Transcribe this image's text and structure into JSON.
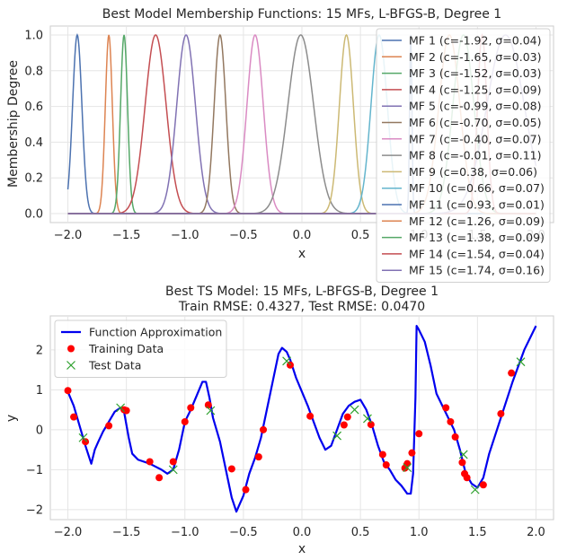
{
  "chart_data": [
    {
      "type": "line",
      "title": "Best Model Membership Functions: 15 MFs, L-BFGS-B, Degree 1",
      "xlabel": "x",
      "ylabel": "Membership Degree",
      "xlim": [
        -2.15,
        2.15
      ],
      "ylim": [
        -0.05,
        1.05
      ],
      "xticks": [
        -2.0,
        -1.5,
        -1.0,
        -0.5,
        0.0,
        0.5,
        1.0,
        1.5,
        2.0
      ],
      "xtick_labels": [
        "−2.0",
        "−1.5",
        "−1.0",
        "−0.5",
        "0.0",
        "0.5",
        "1.0",
        "1.5",
        "2.0"
      ],
      "yticks": [
        0.0,
        0.2,
        0.4,
        0.6,
        0.8,
        1.0
      ],
      "ytick_labels": [
        "0.0",
        "0.2",
        "0.4",
        "0.6",
        "0.8",
        "1.0"
      ],
      "grid": true,
      "legend_position": "upper-right",
      "series": [
        {
          "name": "MF 1 (c=-1.92, σ=0.04)",
          "c": -1.92,
          "sigma": 0.04,
          "color": "#4c72b0"
        },
        {
          "name": "MF 2 (c=-1.65, σ=0.03)",
          "c": -1.65,
          "sigma": 0.03,
          "color": "#dd8452"
        },
        {
          "name": "MF 3 (c=-1.52, σ=0.03)",
          "c": -1.52,
          "sigma": 0.03,
          "color": "#55a868"
        },
        {
          "name": "MF 4 (c=-1.25, σ=0.09)",
          "c": -1.25,
          "sigma": 0.09,
          "color": "#c44e52"
        },
        {
          "name": "MF 5 (c=-0.99, σ=0.08)",
          "c": -0.99,
          "sigma": 0.08,
          "color": "#8172b3"
        },
        {
          "name": "MF 6 (c=-0.70, σ=0.05)",
          "c": -0.7,
          "sigma": 0.05,
          "color": "#937860"
        },
        {
          "name": "MF 7 (c=-0.40, σ=0.07)",
          "c": -0.4,
          "sigma": 0.07,
          "color": "#da8bc3"
        },
        {
          "name": "MF 8 (c=-0.01, σ=0.11)",
          "c": -0.01,
          "sigma": 0.11,
          "color": "#8c8c8c"
        },
        {
          "name": "MF 9 (c=0.38, σ=0.06)",
          "c": 0.38,
          "sigma": 0.06,
          "color": "#ccb974"
        },
        {
          "name": "MF 10 (c=0.66, σ=0.07)",
          "c": 0.66,
          "sigma": 0.07,
          "color": "#64b5cd"
        },
        {
          "name": "MF 11 (c=0.93, σ=0.01)",
          "c": 0.93,
          "sigma": 0.01,
          "color": "#4c72b0"
        },
        {
          "name": "MF 12 (c=1.26, σ=0.09)",
          "c": 1.26,
          "sigma": 0.09,
          "color": "#dd8452"
        },
        {
          "name": "MF 13 (c=1.38, σ=0.09)",
          "c": 1.38,
          "sigma": 0.09,
          "color": "#55a868"
        },
        {
          "name": "MF 14 (c=1.54, σ=0.04)",
          "c": 1.54,
          "sigma": 0.04,
          "color": "#c44e52"
        },
        {
          "name": "MF 15 (c=1.74, σ=0.16)",
          "c": 1.74,
          "sigma": 0.16,
          "color": "#8172b3"
        }
      ]
    },
    {
      "type": "line",
      "title": "Best TS Model: 15 MFs, L-BFGS-B, Degree 1",
      "subtitle": "Train RMSE: 0.4327, Test RMSE: 0.0470",
      "xlabel": "x",
      "ylabel": "y",
      "xlim": [
        -2.15,
        2.15
      ],
      "ylim": [
        -2.25,
        2.85
      ],
      "xticks": [
        -2.0,
        -1.5,
        -1.0,
        -0.5,
        0.0,
        0.5,
        1.0,
        1.5,
        2.0
      ],
      "xtick_labels": [
        "−2.0",
        "−1.5",
        "−1.0",
        "−0.5",
        "0.0",
        "0.5",
        "1.0",
        "1.5",
        "2.0"
      ],
      "yticks": [
        -2,
        -1,
        0,
        1,
        2
      ],
      "ytick_labels": [
        "−2",
        "−1",
        "0",
        "1",
        "2"
      ],
      "grid": true,
      "legend_position": "upper-left",
      "approximation": {
        "name": "Function Approximation",
        "color": "#0000ee",
        "x": [
          -2.0,
          -1.95,
          -1.9,
          -1.85,
          -1.8,
          -1.77,
          -1.74,
          -1.7,
          -1.65,
          -1.6,
          -1.55,
          -1.52,
          -1.48,
          -1.45,
          -1.4,
          -1.3,
          -1.2,
          -1.15,
          -1.1,
          -1.05,
          -1.0,
          -0.95,
          -0.9,
          -0.85,
          -0.82,
          -0.79,
          -0.76,
          -0.7,
          -0.65,
          -0.6,
          -0.56,
          -0.5,
          -0.45,
          -0.4,
          -0.35,
          -0.3,
          -0.25,
          -0.2,
          -0.17,
          -0.13,
          -0.1,
          -0.05,
          0.0,
          0.05,
          0.1,
          0.15,
          0.2,
          0.25,
          0.3,
          0.35,
          0.4,
          0.45,
          0.5,
          0.55,
          0.6,
          0.65,
          0.7,
          0.75,
          0.8,
          0.85,
          0.9,
          0.93,
          0.95,
          0.97,
          0.98,
          1.0,
          1.05,
          1.1,
          1.15,
          1.2,
          1.25,
          1.3,
          1.35,
          1.4,
          1.45,
          1.5,
          1.55,
          1.6,
          1.7,
          1.8,
          1.9,
          2.0
        ],
        "y": [
          0.95,
          0.6,
          0.1,
          -0.4,
          -0.85,
          -0.5,
          -0.3,
          -0.05,
          0.2,
          0.45,
          0.55,
          0.45,
          -0.2,
          -0.6,
          -0.75,
          -0.85,
          -1.0,
          -1.1,
          -1.0,
          -0.5,
          0.2,
          0.5,
          0.85,
          1.2,
          1.2,
          0.8,
          0.3,
          -0.3,
          -1.0,
          -1.7,
          -2.05,
          -1.65,
          -1.1,
          -0.7,
          -0.2,
          0.5,
          1.2,
          1.9,
          2.05,
          1.95,
          1.75,
          1.3,
          0.95,
          0.6,
          0.2,
          -0.2,
          -0.5,
          -0.4,
          0.0,
          0.4,
          0.6,
          0.7,
          0.75,
          0.5,
          0.1,
          -0.4,
          -0.8,
          -1.0,
          -1.25,
          -1.4,
          -1.6,
          -1.6,
          -1.1,
          0.8,
          2.6,
          2.5,
          2.2,
          1.6,
          0.9,
          0.6,
          0.3,
          0.0,
          -0.5,
          -1.1,
          -1.35,
          -1.45,
          -1.2,
          -0.6,
          0.3,
          1.2,
          2.0,
          2.6
        ]
      },
      "training_data": {
        "name": "Training Data",
        "color": "#ff0000",
        "points": [
          [
            -2.0,
            0.98
          ],
          [
            -1.95,
            0.32
          ],
          [
            -1.85,
            -0.3
          ],
          [
            -1.65,
            0.1
          ],
          [
            -1.52,
            0.5
          ],
          [
            -1.5,
            0.48
          ],
          [
            -1.3,
            -0.8
          ],
          [
            -1.22,
            -1.2
          ],
          [
            -1.1,
            -0.8
          ],
          [
            -1.0,
            0.2
          ],
          [
            -0.95,
            0.55
          ],
          [
            -0.8,
            0.62
          ],
          [
            -0.6,
            -0.98
          ],
          [
            -0.48,
            -1.5
          ],
          [
            -0.37,
            -0.68
          ],
          [
            -0.33,
            0.0
          ],
          [
            -0.1,
            1.62
          ],
          [
            0.07,
            0.34
          ],
          [
            0.36,
            0.12
          ],
          [
            0.39,
            0.32
          ],
          [
            0.59,
            0.13
          ],
          [
            0.69,
            -0.62
          ],
          [
            0.72,
            -0.88
          ],
          [
            0.88,
            -0.96
          ],
          [
            0.9,
            -0.85
          ],
          [
            0.94,
            -0.58
          ],
          [
            1.0,
            -0.1
          ],
          [
            1.23,
            0.55
          ],
          [
            1.27,
            0.2
          ],
          [
            1.31,
            -0.18
          ],
          [
            1.37,
            -0.82
          ],
          [
            1.39,
            -1.1
          ],
          [
            1.41,
            -1.2
          ],
          [
            1.55,
            -1.38
          ],
          [
            1.7,
            0.4
          ],
          [
            1.79,
            1.42
          ]
        ]
      },
      "test_data": {
        "name": "Test Data",
        "color": "#2ca02c",
        "points": [
          [
            -1.87,
            -0.2
          ],
          [
            -1.55,
            0.55
          ],
          [
            -1.1,
            -1.0
          ],
          [
            -0.78,
            0.48
          ],
          [
            -0.13,
            1.72
          ],
          [
            0.3,
            -0.15
          ],
          [
            0.45,
            0.5
          ],
          [
            0.56,
            0.28
          ],
          [
            0.9,
            -0.95
          ],
          [
            1.38,
            -0.62
          ],
          [
            1.48,
            -1.5
          ],
          [
            1.87,
            1.7
          ]
        ]
      }
    }
  ]
}
